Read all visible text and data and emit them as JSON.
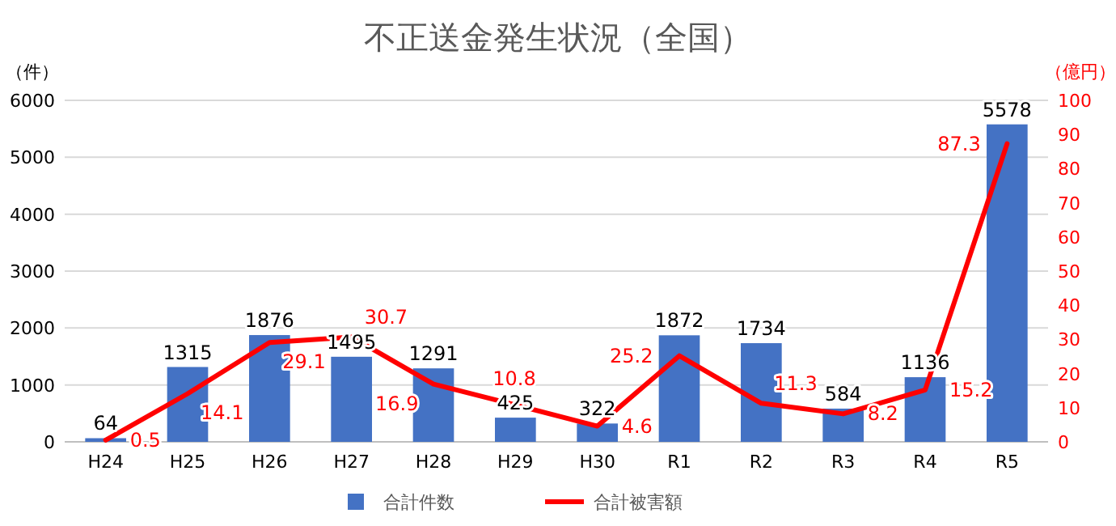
{
  "chart_data": {
    "type": "bar",
    "title": "不正送金発生状況（全国）",
    "ylabel": "（件）",
    "y2label": "（億円）",
    "categories": [
      "H24",
      "H25",
      "H26",
      "H27",
      "H28",
      "H29",
      "H30",
      "R1",
      "R2",
      "R3",
      "R4",
      "R5"
    ],
    "series": [
      {
        "name": "合計件数",
        "type": "bar",
        "color": "#4472c4",
        "values": [
          64,
          1315,
          1876,
          1495,
          1291,
          425,
          322,
          1872,
          1734,
          584,
          1136,
          5578
        ]
      },
      {
        "name": "合計被害額",
        "type": "line",
        "axis": "y2",
        "color": "#ff0000",
        "values": [
          0.5,
          14.1,
          29.1,
          30.7,
          16.9,
          10.8,
          4.6,
          25.2,
          11.3,
          8.2,
          15.2,
          87.3
        ]
      }
    ],
    "ylim": [
      0,
      6000
    ],
    "yticks": [
      0,
      1000,
      2000,
      3000,
      4000,
      5000,
      6000
    ],
    "y2lim": [
      0,
      100
    ],
    "y2ticks": [
      0,
      10,
      20,
      30,
      40,
      50,
      60,
      70,
      80,
      90,
      100
    ],
    "grid": "y",
    "legend": "bottom",
    "data_labels": true,
    "marker": "none",
    "line_style": "solid"
  }
}
